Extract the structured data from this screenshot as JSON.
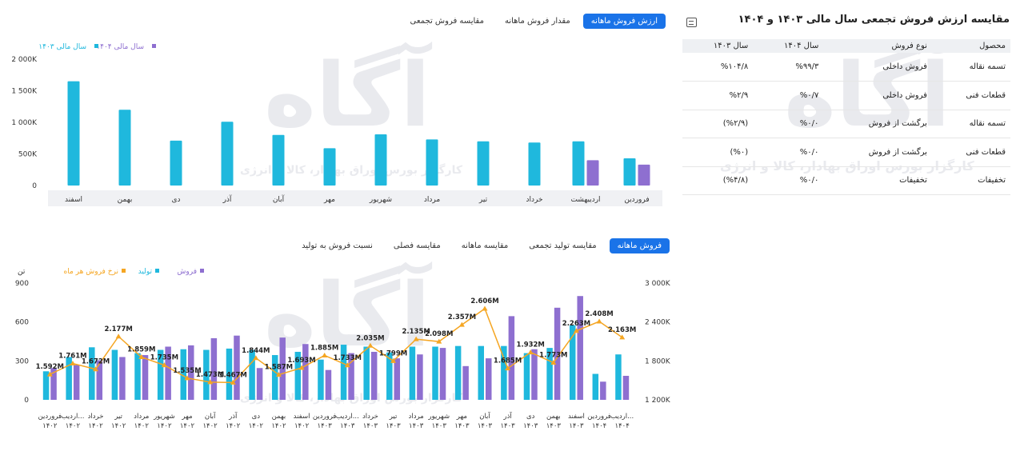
{
  "tabs_top": [
    {
      "label": "ارزش فروش ماهانه",
      "active": true
    },
    {
      "label": "مقدار فروش ماهانه",
      "active": false
    },
    {
      "label": "مقایسه فروش تجمعی",
      "active": false
    }
  ],
  "tabs_bottom": [
    {
      "label": "فروش ماهانه",
      "active": true
    },
    {
      "label": "مقایسه تولید تجمعی",
      "active": false
    },
    {
      "label": "مقایسه ماهانه",
      "active": false
    },
    {
      "label": "مقایسه فصلی",
      "active": false
    },
    {
      "label": "نسبت فروش به تولید",
      "active": false
    }
  ],
  "table": {
    "title": "مقایسه ارزش فروش تجمعی سال مالی ۱۴۰۳ و ۱۴۰۴",
    "headers": [
      "محصول",
      "نوع فروش",
      "سال ۱۴۰۴",
      "سال ۱۴۰۳"
    ],
    "rows": [
      [
        "تسمه نقاله",
        "فروش داخلی",
        "%۹۹/۳",
        "%۱۰۴/۸"
      ],
      [
        "قطعات فنی",
        "فروش داخلی",
        "%۰/۷",
        "%۲/۹"
      ],
      [
        "تسمه نقاله",
        "برگشت از فروش",
        "%۰/۰",
        "(%۲/۹)"
      ],
      [
        "قطعات فنی",
        "برگشت از فروش",
        "%۰/۰",
        "(%۰)"
      ],
      [
        "تخفیفات",
        "تخفیفات",
        "%۰/۰",
        "(%۴/۸)"
      ]
    ]
  },
  "watermark": {
    "logo": "آگاه",
    "tagline": "کارگزار بورس اوراق بهادار، کالا و انرژی"
  },
  "chart_data": [
    {
      "type": "bar",
      "categories": [
        "فروردین",
        "اردیبهشت",
        "خرداد",
        "تیر",
        "مرداد",
        "شهریور",
        "مهر",
        "آبان",
        "آذر",
        "دی",
        "بهمن",
        "اسفند"
      ],
      "series": [
        {
          "name": "سال مالی ۱۴۰۳",
          "color": "#1fb8dd",
          "values": [
            430,
            700,
            680,
            700,
            730,
            810,
            590,
            800,
            1010,
            710,
            1200,
            1650
          ]
        },
        {
          "name": "سال مالی ۱۴۰۴",
          "color": "#8e6fd0",
          "values": [
            330,
            400,
            null,
            null,
            null,
            null,
            null,
            null,
            null,
            null,
            null,
            null
          ]
        }
      ],
      "y_ticks": [
        "0",
        "500K",
        "1 000K",
        "1 500K",
        "2 000K"
      ],
      "ylim": [
        0,
        2000
      ],
      "legend_position": "top-left",
      "grid": false
    },
    {
      "type": "bar",
      "categories": [
        [
          "فروردین",
          "۱۴۰۲"
        ],
        [
          "اردیب...",
          "۱۴۰۲"
        ],
        [
          "خرداد",
          "۱۴۰۲"
        ],
        [
          "تیر",
          "۱۴۰۲"
        ],
        [
          "مرداد",
          "۱۴۰۲"
        ],
        [
          "شهریور",
          "۱۴۰۲"
        ],
        [
          "مهر",
          "۱۴۰۲"
        ],
        [
          "آبان",
          "۱۴۰۲"
        ],
        [
          "آذر",
          "۱۴۰۲"
        ],
        [
          "دی",
          "۱۴۰۲"
        ],
        [
          "بهمن",
          "۱۴۰۲"
        ],
        [
          "اسفند",
          "۱۴۰۲"
        ],
        [
          "فروردین",
          "۱۴۰۳"
        ],
        [
          "اردیب...",
          "۱۴۰۳"
        ],
        [
          "خرداد",
          "۱۴۰۳"
        ],
        [
          "تیر",
          "۱۴۰۳"
        ],
        [
          "مرداد",
          "۱۴۰۳"
        ],
        [
          "شهریور",
          "۱۴۰۳"
        ],
        [
          "مهر",
          "۱۴۰۳"
        ],
        [
          "آبان",
          "۱۴۰۳"
        ],
        [
          "آذر",
          "۱۴۰۳"
        ],
        [
          "دی",
          "۱۴۰۳"
        ],
        [
          "بهمن",
          "۱۴۰۳"
        ],
        [
          "اسفند",
          "۱۴۰۳"
        ],
        [
          "فروردین",
          "۱۴۰۴"
        ],
        [
          "اردیب...",
          "۱۴۰۴"
        ]
      ],
      "left_axis_unit": "تن",
      "left_ticks": [
        "0",
        "300",
        "600",
        "900"
      ],
      "left_ylim": [
        0,
        900
      ],
      "right_ticks": [
        "1 200K",
        "1 800K",
        "2 400K",
        "3 000K"
      ],
      "right_ylim": [
        1200,
        3000
      ],
      "series": [
        {
          "name": "تولید",
          "color": "#1fb8dd",
          "axis": "left",
          "values": [
            220,
            330,
            405,
            385,
            360,
            385,
            390,
            385,
            395,
            385,
            345,
            370,
            310,
            425,
            410,
            365,
            410,
            410,
            415,
            415,
            415,
            360,
            400,
            575,
            200,
            350
          ]
        },
        {
          "name": "فروش",
          "color": "#8e6fd0",
          "axis": "left",
          "values": [
            245,
            270,
            305,
            330,
            345,
            410,
            420,
            475,
            495,
            245,
            480,
            430,
            230,
            360,
            370,
            320,
            350,
            400,
            260,
            320,
            645,
            390,
            710,
            800,
            140,
            185
          ]
        },
        {
          "name": "نرخ فروش هر ماه",
          "color": "#f5a623",
          "axis": "right",
          "type": "line",
          "values": [
            1592,
            1761,
            1672,
            2177,
            1859,
            1735,
            1535,
            1473,
            1467,
            1844,
            1587,
            1693,
            1885,
            1733,
            2035,
            1799,
            2135,
            2098,
            2357,
            2606,
            1685,
            1932,
            1773,
            2263,
            2408,
            2163
          ]
        }
      ],
      "line_labels": [
        "1.592M",
        "1.761M",
        "1.672M",
        "2.177M",
        "1.859M",
        "1.735M",
        "1.535M",
        "1.473M",
        "1.467M",
        "1.844M",
        "1.587M",
        "1.693M",
        "1.885M",
        "1.733M",
        "2.035M",
        "1.799M",
        "2.135M",
        "2.098M",
        "2.357M",
        "2.606M",
        "1.685M",
        "1.932M",
        "1.773M",
        "2.263M",
        "2.408M",
        "2.163M"
      ],
      "legend_position": "top-left",
      "grid": false
    }
  ]
}
